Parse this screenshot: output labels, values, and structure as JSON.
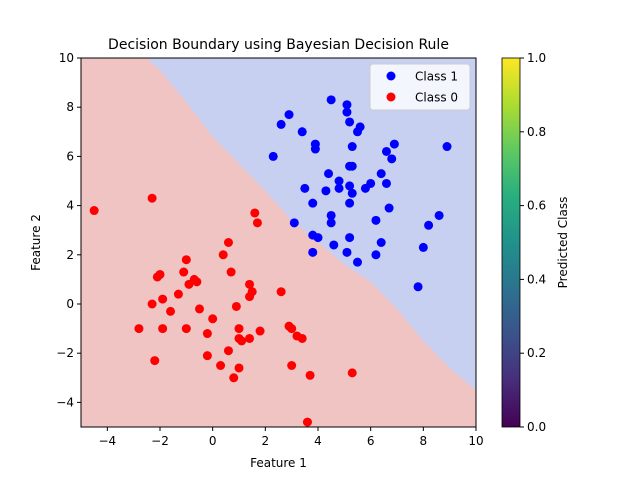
{
  "chart_data": {
    "type": "scatter",
    "title": "Decision Boundary using Bayesian Decision Rule",
    "xlabel": "Feature 1",
    "ylabel": "Feature 2",
    "xlim": [
      -5,
      10
    ],
    "ylim": [
      -5,
      10
    ],
    "xticks": [
      -4,
      -2,
      0,
      2,
      4,
      6,
      8,
      10
    ],
    "yticks": [
      -4,
      -2,
      0,
      2,
      4,
      6,
      8,
      10
    ],
    "grid": false,
    "legend_position": "top-right",
    "decision_regions": {
      "class_0_color": "#f0c4c2",
      "class_1_color": "#c8d0f2",
      "boundary_points": [
        [
          -2.5,
          10
        ],
        [
          -2.0,
          9.5
        ],
        [
          -1.0,
          8.2
        ],
        [
          0.0,
          6.8
        ],
        [
          1.0,
          5.7
        ],
        [
          2.0,
          4.6
        ],
        [
          3.0,
          3.4
        ],
        [
          4.0,
          2.5
        ],
        [
          5.0,
          1.6
        ],
        [
          6.0,
          0.9
        ],
        [
          7.0,
          -0.2
        ],
        [
          8.0,
          -1.5
        ],
        [
          9.0,
          -2.6
        ],
        [
          10.0,
          -3.5
        ]
      ]
    },
    "series": [
      {
        "name": "Class 1",
        "color": "#0000ff",
        "points": [
          [
            4.5,
            8.3
          ],
          [
            5.1,
            8.1
          ],
          [
            5.1,
            7.8
          ],
          [
            2.9,
            7.7
          ],
          [
            5.2,
            7.4
          ],
          [
            2.6,
            7.3
          ],
          [
            5.6,
            7.2
          ],
          [
            5.5,
            7.0
          ],
          [
            3.4,
            7.0
          ],
          [
            3.9,
            6.5
          ],
          [
            6.9,
            6.5
          ],
          [
            5.3,
            6.4
          ],
          [
            3.9,
            6.3
          ],
          [
            8.9,
            6.4
          ],
          [
            6.6,
            6.2
          ],
          [
            2.3,
            6.0
          ],
          [
            6.8,
            5.9
          ],
          [
            5.2,
            5.6
          ],
          [
            5.3,
            5.6
          ],
          [
            4.4,
            5.3
          ],
          [
            6.4,
            5.3
          ],
          [
            4.8,
            5.0
          ],
          [
            6.0,
            4.9
          ],
          [
            6.6,
            4.9
          ],
          [
            5.2,
            4.8
          ],
          [
            5.8,
            4.7
          ],
          [
            3.5,
            4.7
          ],
          [
            4.8,
            4.7
          ],
          [
            4.3,
            4.6
          ],
          [
            5.3,
            4.5
          ],
          [
            5.2,
            4.1
          ],
          [
            3.8,
            4.1
          ],
          [
            6.7,
            3.9
          ],
          [
            8.6,
            3.6
          ],
          [
            4.5,
            3.6
          ],
          [
            6.2,
            3.4
          ],
          [
            3.1,
            3.3
          ],
          [
            4.5,
            3.3
          ],
          [
            8.2,
            3.2
          ],
          [
            3.8,
            2.8
          ],
          [
            4.0,
            2.7
          ],
          [
            5.2,
            2.7
          ],
          [
            4.6,
            2.4
          ],
          [
            6.4,
            2.5
          ],
          [
            8.0,
            2.3
          ],
          [
            3.8,
            2.1
          ],
          [
            5.1,
            2.1
          ],
          [
            6.2,
            2.0
          ],
          [
            5.5,
            1.7
          ],
          [
            7.8,
            0.7
          ]
        ]
      },
      {
        "name": "Class 0",
        "color": "#ff0000",
        "points": [
          [
            -4.5,
            3.8
          ],
          [
            -2.3,
            4.3
          ],
          [
            1.6,
            3.7
          ],
          [
            1.7,
            3.3
          ],
          [
            0.6,
            2.5
          ],
          [
            0.4,
            2.0
          ],
          [
            -1.0,
            1.8
          ],
          [
            -2.0,
            1.2
          ],
          [
            -2.1,
            1.1
          ],
          [
            -1.1,
            1.3
          ],
          [
            0.7,
            1.3
          ],
          [
            -0.7,
            1.0
          ],
          [
            -0.6,
            0.9
          ],
          [
            -0.9,
            0.8
          ],
          [
            1.4,
            0.8
          ],
          [
            2.6,
            0.5
          ],
          [
            -1.3,
            0.4
          ],
          [
            1.5,
            0.5
          ],
          [
            1.4,
            0.3
          ],
          [
            -1.9,
            0.2
          ],
          [
            -2.3,
            0.0
          ],
          [
            0.9,
            -0.1
          ],
          [
            -0.5,
            -0.2
          ],
          [
            -1.6,
            -0.3
          ],
          [
            0.0,
            -0.6
          ],
          [
            -2.8,
            -1.0
          ],
          [
            -1.9,
            -1.0
          ],
          [
            -1.0,
            -1.0
          ],
          [
            1.0,
            -1.0
          ],
          [
            1.8,
            -1.1
          ],
          [
            -0.2,
            -1.2
          ],
          [
            2.9,
            -0.9
          ],
          [
            3.0,
            -1.0
          ],
          [
            3.2,
            -1.3
          ],
          [
            3.4,
            -1.4
          ],
          [
            1.0,
            -1.4
          ],
          [
            1.4,
            -1.4
          ],
          [
            1.1,
            -1.5
          ],
          [
            0.6,
            -1.9
          ],
          [
            -0.2,
            -2.1
          ],
          [
            -2.2,
            -2.3
          ],
          [
            0.3,
            -2.5
          ],
          [
            3.0,
            -2.5
          ],
          [
            1.0,
            -2.6
          ],
          [
            5.3,
            -2.8
          ],
          [
            3.7,
            -2.9
          ],
          [
            0.8,
            -3.0
          ],
          [
            3.6,
            -4.8
          ]
        ]
      }
    ],
    "colorbar": {
      "label": "Predicted Class",
      "range": [
        0,
        1
      ],
      "ticks": [
        "0.0",
        "0.2",
        "0.4",
        "0.6",
        "0.8",
        "1.0"
      ],
      "colormap": "viridis"
    }
  }
}
